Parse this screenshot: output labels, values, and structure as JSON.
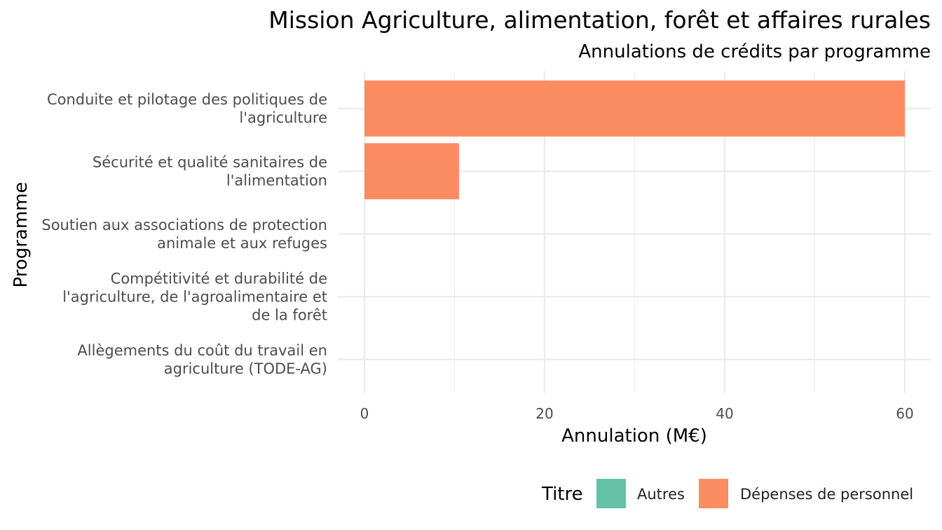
{
  "chart_data": {
    "type": "bar",
    "orientation": "horizontal",
    "title": "Mission Agriculture, alimentation, forêt et affaires rurales",
    "subtitle": "Annulations de crédits par programme",
    "xlabel": "Annulation (M€)",
    "ylabel": "Programme",
    "xlim": [
      0,
      60
    ],
    "x_ticks": [
      0,
      20,
      40,
      60
    ],
    "grid": true,
    "legend": {
      "title": "Titre",
      "placement": "bottom-right",
      "entries": [
        {
          "label": "Autres",
          "color": "#66c2a5"
        },
        {
          "label": "Dépenses de personnel",
          "color": "#fc8d62"
        }
      ]
    },
    "categories": [
      [
        "Conduite et pilotage des politiques de",
        "l'agriculture"
      ],
      [
        "Sécurité et qualité sanitaires de",
        "l'alimentation"
      ],
      [
        "Soutien aux associations de protection",
        "animale et aux refuges"
      ],
      [
        "Compétitivité et durabilité de",
        "l'agriculture, de l'agroalimentaire et",
        "de la forêt"
      ],
      [
        "Allègements du coût du travail en",
        "agriculture (TODE-AG)"
      ]
    ],
    "series": [
      {
        "name": "Autres",
        "color": "#66c2a5",
        "values": [
          0,
          0,
          0,
          0,
          0
        ]
      },
      {
        "name": "Dépenses de personnel",
        "color": "#fc8d62",
        "values": [
          60,
          10.5,
          0,
          0,
          0
        ]
      }
    ]
  }
}
